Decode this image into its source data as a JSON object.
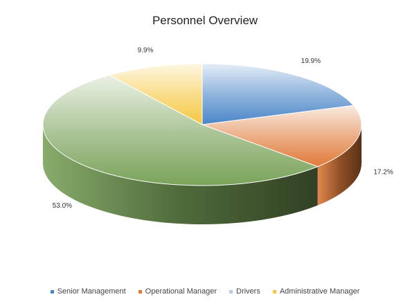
{
  "chart_data": {
    "type": "pie",
    "title": "Personnel Overview",
    "categories": [
      "Senior Management",
      "Operational Manager",
      "Drivers",
      "Administrative Manager"
    ],
    "values": [
      19.9,
      17.2,
      53.0,
      9.9
    ],
    "labels": [
      "19.9%",
      "17.2%",
      "53.0%",
      "9.9%"
    ],
    "colors": [
      "#4a86c8",
      "#e07b3a",
      "#7aa35a",
      "#f5c842"
    ],
    "legend_position": "bottom",
    "style": "3D"
  }
}
